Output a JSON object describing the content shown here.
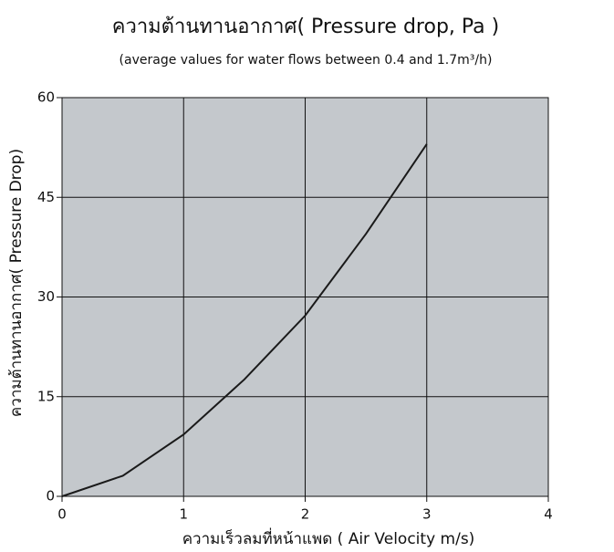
{
  "chart_data": {
    "type": "line",
    "title": "ความต้านทานอากาศ( Pressure drop, Pa )",
    "subtitle": "(average values for water flows between 0.4 and 1.7m³/h)",
    "x_label": "ความเร็วลมที่หน้าแพด ( Air Velocity m/s)",
    "y_label": "ความต้านทานอากาศ( Pressure Drop)",
    "x": [
      0,
      0.5,
      1,
      1.5,
      2,
      2.5,
      3
    ],
    "series": [
      {
        "name": "Pressure drop",
        "color": "#1a1a1a",
        "values": [
          0,
          3.1,
          9.3,
          17.6,
          27.2,
          39.5,
          53
        ]
      }
    ],
    "xlim": [
      0,
      4
    ],
    "xticks": [
      0,
      1,
      2,
      3,
      4
    ],
    "ylim": [
      0,
      60
    ],
    "yticks": [
      0,
      15,
      30,
      45,
      60
    ],
    "grid": true,
    "background": "#c4c8cc"
  }
}
